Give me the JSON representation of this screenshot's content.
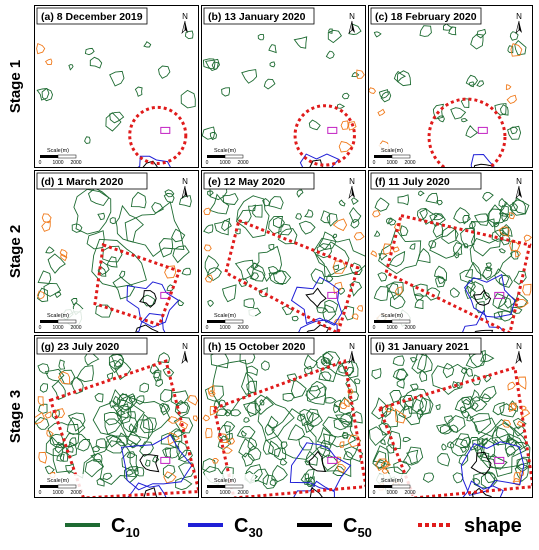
{
  "stages": [
    {
      "label": "Stage 1"
    },
    {
      "label": "Stage 2"
    },
    {
      "label": "Stage 3"
    }
  ],
  "panels": [
    {
      "title": "(a) 8 December 2019"
    },
    {
      "title": "(b) 13 January 2020"
    },
    {
      "title": "(c) 18 February 2020"
    },
    {
      "title": "(d) 1 March 2020"
    },
    {
      "title": "(e) 12 May 2020"
    },
    {
      "title": "(f) 11 July 2020"
    },
    {
      "title": "(g) 23 July 2020"
    },
    {
      "title": "(h) 15 October 2020"
    },
    {
      "title": "(i) 31 January 2021"
    }
  ],
  "north_label": "N",
  "scale_bar": {
    "label": "Scale(m)",
    "ticks": [
      "0",
      "1000",
      "2000"
    ]
  },
  "legend": [
    {
      "name": "C10",
      "base": "C",
      "sub": "10",
      "color": "#1e6b32",
      "dash": false
    },
    {
      "name": "C30",
      "base": "C",
      "sub": "30",
      "color": "#1f1fd6",
      "dash": false
    },
    {
      "name": "C50",
      "base": "C",
      "sub": "50",
      "color": "#000000",
      "dash": false
    },
    {
      "name": "shape",
      "base": "shape",
      "sub": "",
      "color": "#e01b1b",
      "dash": true
    }
  ],
  "colors": {
    "c10": "#1e6b32",
    "c30": "#1f1fd6",
    "c50": "#000000",
    "shape": "#e01b1b",
    "orange": "#f07b1d",
    "marker": "#c21fc2"
  }
}
